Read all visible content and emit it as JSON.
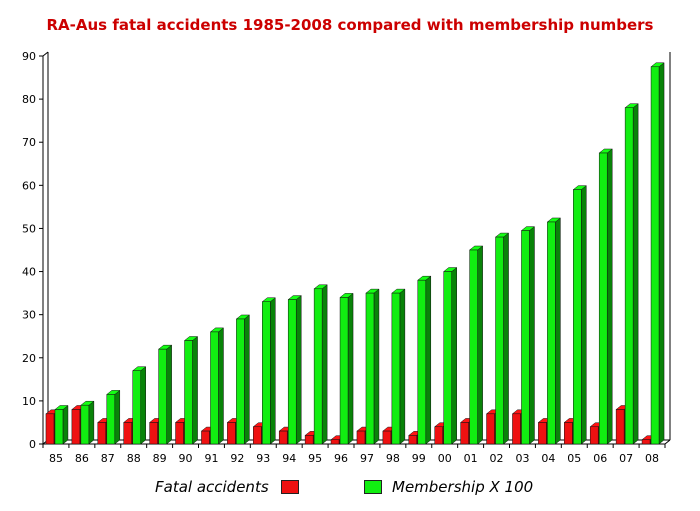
{
  "chart_data": {
    "type": "bar",
    "title": "RA-Aus fatal accidents 1985-2008 compared with membership numbers",
    "categories": [
      "85",
      "86",
      "87",
      "88",
      "89",
      "90",
      "91",
      "92",
      "93",
      "94",
      "95",
      "96",
      "97",
      "98",
      "99",
      "00",
      "01",
      "02",
      "03",
      "04",
      "05",
      "06",
      "07",
      "08"
    ],
    "series": [
      {
        "name": "Fatal accidents",
        "color": "#ee1111",
        "values": [
          7,
          8,
          5,
          5,
          5,
          5,
          3,
          5,
          4,
          3,
          2,
          1,
          3,
          3,
          2,
          4,
          5,
          7,
          7,
          5,
          5,
          4,
          8,
          1
        ]
      },
      {
        "name": "Membership X 100",
        "color": "#11ee11",
        "values": [
          8,
          9,
          11.5,
          17,
          22,
          24,
          26,
          29,
          33,
          33.5,
          36,
          34,
          35,
          35,
          38,
          40,
          45,
          48,
          49.5,
          51.5,
          59,
          67.5,
          78,
          87.5
        ]
      }
    ],
    "ylim": [
      0,
      90
    ],
    "yticks": [
      0,
      10,
      20,
      30,
      40,
      50,
      60,
      70,
      80,
      90
    ],
    "grid": false,
    "legend_position": "bottom"
  }
}
